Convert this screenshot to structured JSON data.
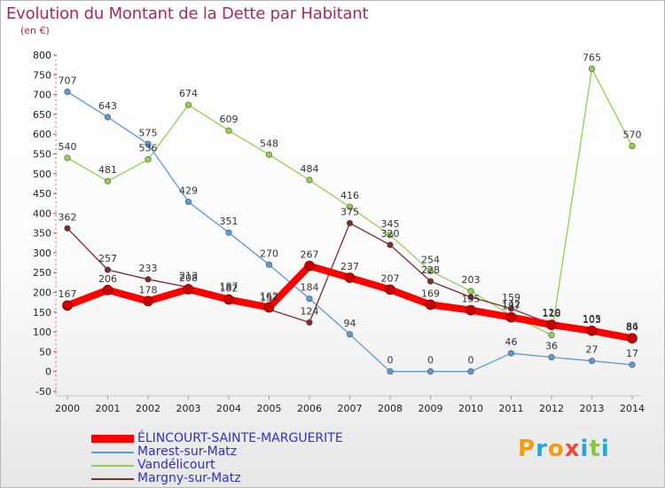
{
  "title": "Evolution du Montant de la Dette par Habitant",
  "unit": "(en €)",
  "logo": {
    "text": "Proxiti",
    "colors": [
      "#f39c12",
      "#2aa6d6",
      "#f39c12",
      "#e74c3c",
      "#2aa6d6",
      "#8dc63f",
      "#2aa6d6"
    ]
  },
  "chart_data": {
    "type": "line",
    "title": "Evolution du Montant de la Dette par Habitant",
    "ylabel": "(en €)",
    "xlabel": "",
    "x": [
      "2000",
      "2001",
      "2002",
      "2003",
      "2004",
      "2005",
      "2006",
      "2007",
      "2008",
      "2009",
      "2010",
      "2011",
      "2012",
      "2013",
      "2014"
    ],
    "ylim": [
      -50,
      800
    ],
    "yticks": [
      -50,
      0,
      50,
      100,
      150,
      200,
      250,
      300,
      350,
      400,
      450,
      500,
      550,
      600,
      650,
      700,
      750,
      800
    ],
    "grid": false,
    "legend_placement": "bottom-left",
    "series": [
      {
        "name": "ÉLINCOURT-SAINTE-MARGUERITE",
        "color": "#ff0000",
        "values": [
          167,
          206,
          178,
          208,
          182,
          162,
          267,
          237,
          207,
          169,
          155,
          137,
          118,
          103,
          84
        ]
      },
      {
        "name": "Marest-sur-Matz",
        "color": "#5b9bd5",
        "values": [
          707,
          643,
          575,
          429,
          351,
          270,
          184,
          94,
          0,
          0,
          0,
          46,
          36,
          27,
          17
        ]
      },
      {
        "name": "Vandélicourt",
        "color": "#92d050",
        "values": [
          540,
          481,
          536,
          674,
          609,
          548,
          484,
          416,
          345,
          254,
          203,
          142,
          92,
          765,
          570
        ]
      },
      {
        "name": "Margny-sur-Matz",
        "color": "#7b2c2c",
        "values": [
          362,
          257,
          233,
          213,
          187,
          157,
          124,
          375,
          320,
          228,
          188,
          159,
          120,
          105,
          86
        ]
      }
    ],
    "point_labels": [
      [
        "167",
        "206",
        "178",
        "208",
        "182",
        "162",
        "267",
        "237",
        "207",
        "169",
        "155",
        "137",
        "118",
        "103",
        "84"
      ],
      [
        "707",
        "643",
        "575",
        "429",
        "351",
        "270",
        "184",
        "94",
        "0",
        "0",
        "0",
        "46",
        "36",
        "27",
        "17"
      ],
      [
        "540",
        "481",
        "536",
        "674",
        "609",
        "548",
        "484",
        "416",
        "345",
        "254",
        "203",
        "142",
        "",
        "765",
        "570"
      ],
      [
        "362",
        "257",
        "233",
        "213",
        "187",
        "157",
        "124",
        "375",
        "320",
        "228",
        "",
        "159",
        "120",
        "105",
        "86"
      ]
    ]
  }
}
